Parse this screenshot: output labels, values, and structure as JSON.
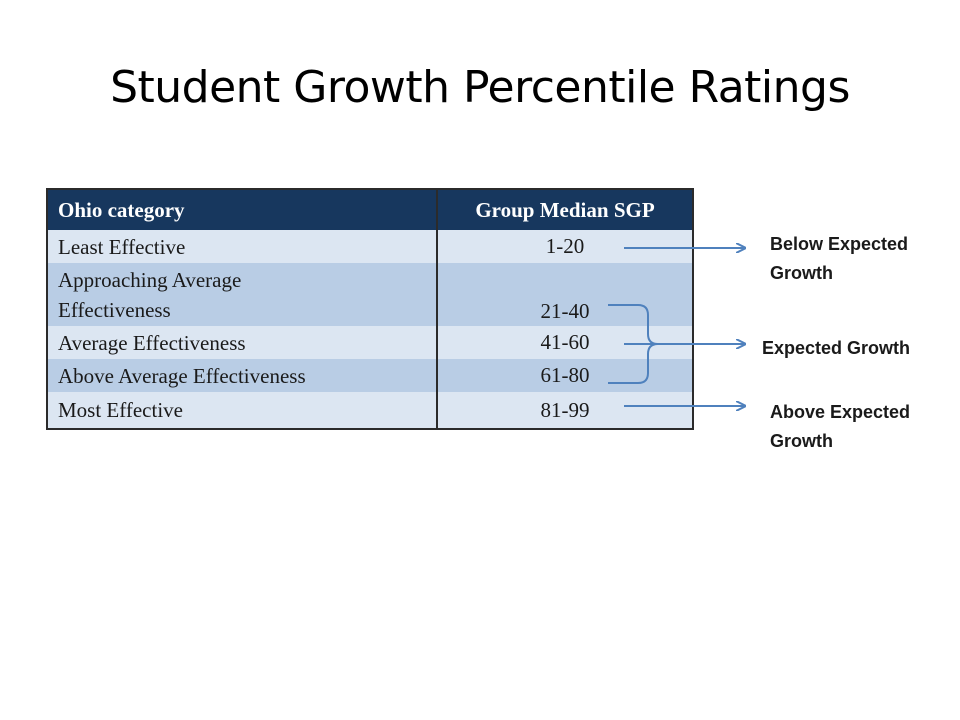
{
  "title": "Student Growth Percentile Ratings",
  "table": {
    "headers": [
      "Ohio category",
      "Group Median SGP"
    ],
    "rows": [
      {
        "category": "Least Effective",
        "sgp": "1-20"
      },
      {
        "category_line1": "Approaching Average",
        "category_line2": "Effectiveness",
        "sgp": "21-40"
      },
      {
        "category": "Average Effectiveness",
        "sgp": "41-60"
      },
      {
        "category": "Above Average Effectiveness",
        "sgp": "61-80"
      },
      {
        "category": "Most Effective",
        "sgp": "81-99"
      }
    ]
  },
  "annotations": {
    "below_line1": "Below Expected",
    "below_line2": "Growth",
    "expected": "Expected Growth",
    "above_line1": "Above Expected",
    "above_line2": "Growth"
  },
  "colors": {
    "header_bg": "#17375e",
    "row_light": "#dce6f2",
    "row_mid": "#b9cde5",
    "arrow": "#4f81bd"
  }
}
